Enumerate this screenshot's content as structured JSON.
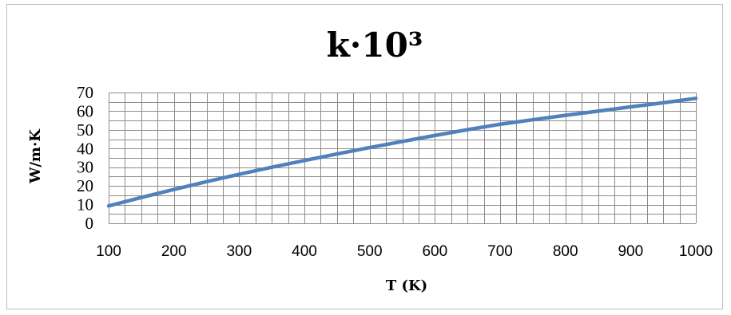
{
  "chart_data": {
    "type": "line",
    "title": "k·10³",
    "xlabel": "T (K)",
    "ylabel": "W/m·K",
    "xlim": [
      100,
      1000
    ],
    "ylim": [
      0,
      70
    ],
    "x_ticks": [
      100,
      200,
      300,
      400,
      500,
      600,
      700,
      800,
      900,
      1000
    ],
    "y_ticks": [
      0,
      10,
      20,
      30,
      40,
      50,
      60,
      70
    ],
    "x_minor_step": 25,
    "y_minor_step": 5,
    "grid": true,
    "legend": "none",
    "series": [
      {
        "color": "#4f81bd",
        "x": [
          100,
          150,
          200,
          250,
          300,
          350,
          400,
          450,
          500,
          550,
          600,
          650,
          700,
          750,
          800,
          850,
          900,
          950,
          1000
        ],
        "y": [
          9.3,
          13.8,
          18.1,
          22.3,
          26.2,
          30.0,
          33.6,
          37.1,
          40.5,
          43.8,
          47.0,
          50.1,
          53.0,
          55.4,
          57.8,
          60.0,
          62.3,
          64.5,
          66.9
        ]
      }
    ]
  },
  "colors": {
    "frame_border": "#bfbfbf",
    "gridline": "#8c8c8c",
    "line": "#4f81bd"
  }
}
